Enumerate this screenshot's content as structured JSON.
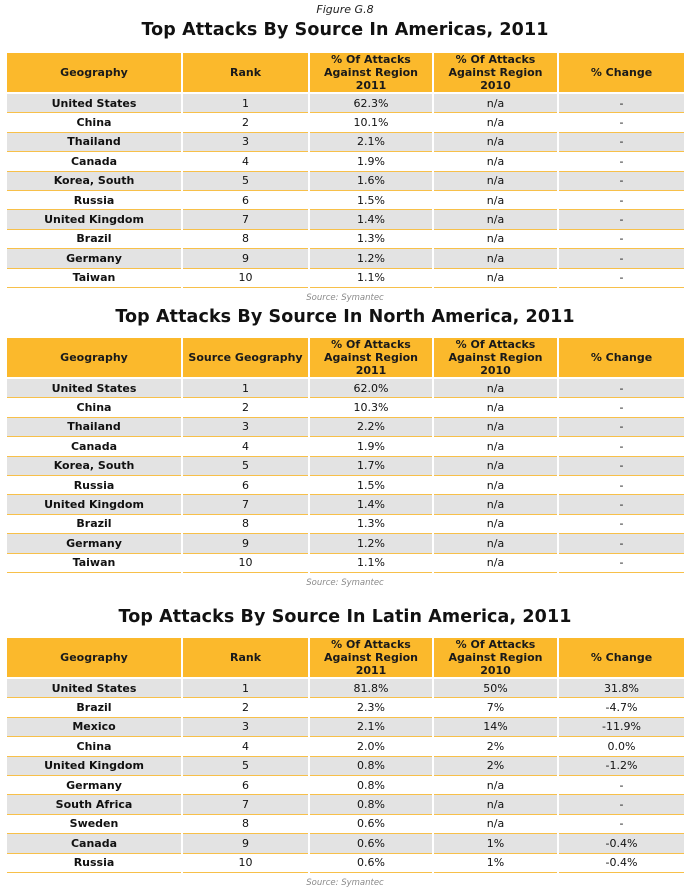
{
  "figure_label": "Figure G.8",
  "source_note": "Source: Symantec",
  "tables": [
    {
      "title": "Top Attacks By Source In Americas, 2011",
      "headers": [
        "Geography",
        "Rank",
        "% Of Attacks Against Region 2011",
        "% Of Attacks Against Region 2010",
        "% Change"
      ],
      "rows": [
        [
          "United States",
          "1",
          "62.3%",
          "n/a",
          "-"
        ],
        [
          "China",
          "2",
          "10.1%",
          "n/a",
          "-"
        ],
        [
          "Thailand",
          "3",
          "2.1%",
          "n/a",
          "-"
        ],
        [
          "Canada",
          "4",
          "1.9%",
          "n/a",
          "-"
        ],
        [
          "Korea, South",
          "5",
          "1.6%",
          "n/a",
          "-"
        ],
        [
          "Russia",
          "6",
          "1.5%",
          "n/a",
          "-"
        ],
        [
          "United Kingdom",
          "7",
          "1.4%",
          "n/a",
          "-"
        ],
        [
          "Brazil",
          "8",
          "1.3%",
          "n/a",
          "-"
        ],
        [
          "Germany",
          "9",
          "1.2%",
          "n/a",
          "-"
        ],
        [
          "Taiwan",
          "10",
          "1.1%",
          "n/a",
          "-"
        ]
      ]
    },
    {
      "title": "Top Attacks By Source In North America, 2011",
      "headers": [
        "Geography",
        "Source Geography",
        "% Of Attacks Against Region 2011",
        "% Of Attacks Against Region 2010",
        "% Change"
      ],
      "rows": [
        [
          "United States",
          "1",
          "62.0%",
          "n/a",
          "-"
        ],
        [
          "China",
          "2",
          "10.3%",
          "n/a",
          "-"
        ],
        [
          "Thailand",
          "3",
          "2.2%",
          "n/a",
          "-"
        ],
        [
          "Canada",
          "4",
          "1.9%",
          "n/a",
          "-"
        ],
        [
          "Korea, South",
          "5",
          "1.7%",
          "n/a",
          "-"
        ],
        [
          "Russia",
          "6",
          "1.5%",
          "n/a",
          "-"
        ],
        [
          "United Kingdom",
          "7",
          "1.4%",
          "n/a",
          "-"
        ],
        [
          "Brazil",
          "8",
          "1.3%",
          "n/a",
          "-"
        ],
        [
          "Germany",
          "9",
          "1.2%",
          "n/a",
          "-"
        ],
        [
          "Taiwan",
          "10",
          "1.1%",
          "n/a",
          "-"
        ]
      ]
    },
    {
      "title": "Top Attacks By Source In Latin America, 2011",
      "headers": [
        "Geography",
        "Rank",
        "% Of Attacks Against Region 2011",
        "% Of Attacks Against Region 2010",
        "% Change"
      ],
      "rows": [
        [
          "United States",
          "1",
          "81.8%",
          "50%",
          "31.8%"
        ],
        [
          "Brazil",
          "2",
          "2.3%",
          "7%",
          "-4.7%"
        ],
        [
          "Mexico",
          "3",
          "2.1%",
          "14%",
          "-11.9%"
        ],
        [
          "China",
          "4",
          "2.0%",
          "2%",
          "0.0%"
        ],
        [
          "United Kingdom",
          "5",
          "0.8%",
          "2%",
          "-1.2%"
        ],
        [
          "Germany",
          "6",
          "0.8%",
          "n/a",
          "-"
        ],
        [
          "South Africa",
          "7",
          "0.8%",
          "n/a",
          "-"
        ],
        [
          "Sweden",
          "8",
          "0.6%",
          "n/a",
          "-"
        ],
        [
          "Canada",
          "9",
          "0.6%",
          "1%",
          "-0.4%"
        ],
        [
          "Russia",
          "10",
          "0.6%",
          "1%",
          "-0.4%"
        ]
      ]
    }
  ]
}
